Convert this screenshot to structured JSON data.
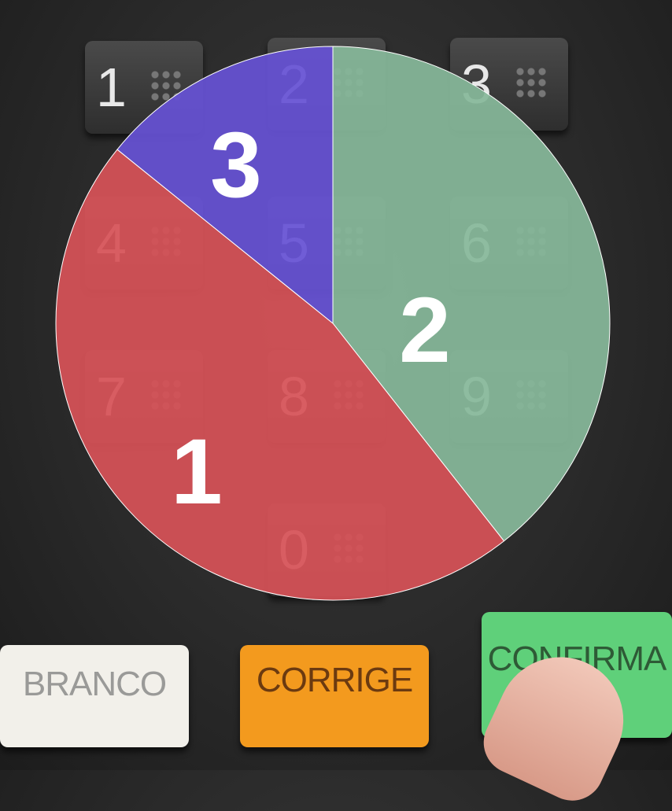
{
  "chart_data": {
    "type": "pie",
    "categories": [
      "2",
      "1",
      "3"
    ],
    "values": [
      39.4,
      46.4,
      14.2
    ],
    "colors": [
      "#86b89a",
      "#d65257",
      "#6652d4"
    ],
    "start_angle": "top",
    "direction": "clockwise",
    "legend": "none"
  },
  "background": {
    "keypad_digits": [
      "1",
      "2",
      "3",
      "4",
      "5",
      "6",
      "7",
      "8",
      "9",
      "0"
    ],
    "buttons": [
      {
        "label": "BRANCO",
        "color": "#f2f0ea"
      },
      {
        "label": "CORRIGE",
        "color": "#f39a1e"
      },
      {
        "label": "CONFIRMA",
        "color": "#5fd07a"
      }
    ]
  }
}
